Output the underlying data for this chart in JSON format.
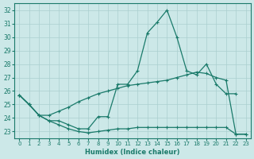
{
  "xlabel": "Humidex (Indice chaleur)",
  "background_color": "#cce8e8",
  "grid_color": "#aacfcf",
  "line_color": "#1a7a6a",
  "ylim": [
    22.5,
    32.5
  ],
  "yticks": [
    23,
    24,
    25,
    26,
    27,
    28,
    29,
    30,
    31,
    32
  ],
  "xlim": [
    -0.5,
    23.5
  ],
  "xticks": [
    0,
    1,
    2,
    3,
    4,
    5,
    6,
    7,
    8,
    9,
    10,
    11,
    12,
    13,
    14,
    15,
    16,
    17,
    18,
    19,
    20,
    21,
    22,
    23
  ],
  "line1_x": [
    0,
    1,
    2,
    3,
    4,
    5,
    6,
    7,
    8,
    9,
    10,
    11,
    12,
    13,
    14,
    15,
    16,
    17,
    18,
    19,
    20,
    21,
    22
  ],
  "line1_y": [
    25.7,
    25.0,
    24.2,
    23.8,
    23.8,
    23.5,
    23.2,
    23.2,
    24.1,
    24.1,
    26.5,
    26.5,
    27.5,
    30.3,
    31.1,
    32.0,
    30.0,
    27.5,
    27.2,
    28.0,
    26.5,
    25.8,
    25.8
  ],
  "line2_x": [
    0,
    1,
    2,
    3,
    4,
    5,
    6,
    7,
    8,
    9,
    10,
    11,
    12,
    13,
    14,
    15,
    16,
    17,
    18,
    19,
    20,
    21,
    22,
    23
  ],
  "line2_y": [
    25.7,
    25.0,
    24.2,
    24.2,
    24.5,
    24.8,
    25.2,
    25.5,
    25.8,
    26.0,
    26.2,
    26.4,
    26.5,
    26.6,
    26.7,
    26.8,
    27.0,
    27.2,
    27.4,
    27.3,
    27.0,
    26.8,
    22.8,
    22.8
  ],
  "line3_x": [
    0,
    1,
    2,
    3,
    4,
    5,
    6,
    7,
    8,
    9,
    10,
    11,
    12,
    13,
    14,
    15,
    16,
    17,
    18,
    19,
    20,
    21,
    22,
    23
  ],
  "line3_y": [
    25.7,
    25.0,
    24.2,
    23.8,
    23.5,
    23.2,
    23.0,
    22.9,
    23.0,
    23.1,
    23.2,
    23.2,
    23.3,
    23.3,
    23.3,
    23.3,
    23.3,
    23.3,
    23.3,
    23.3,
    23.3,
    23.3,
    22.8,
    22.8
  ]
}
